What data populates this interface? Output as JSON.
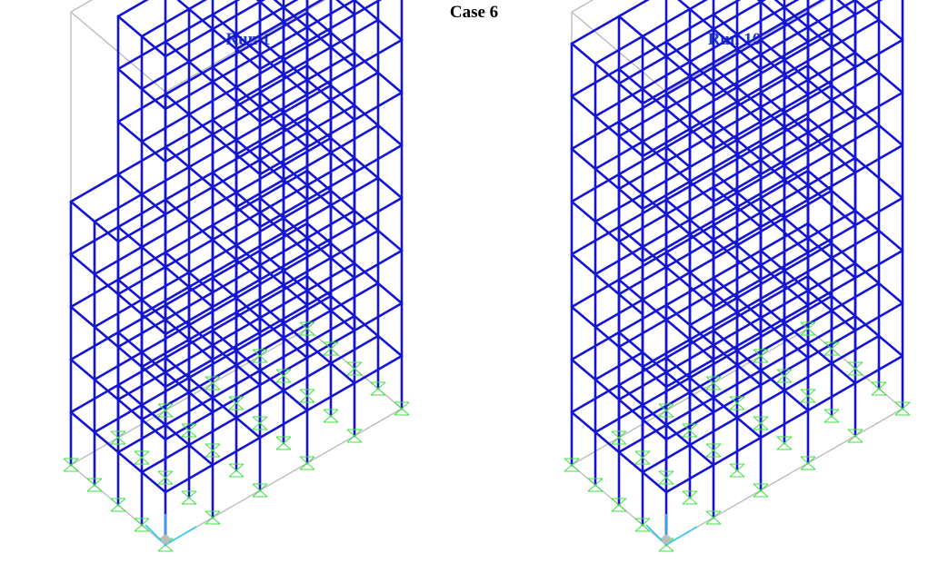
{
  "figure": {
    "title": "Case 6",
    "colors": {
      "frame": "#1414d2",
      "bounding_box": "#b9b9b9",
      "support": "#3fe03f",
      "axis": "#35c8ef",
      "title_blue": "#1f3fbf"
    },
    "panels": [
      {
        "id": "run1",
        "label": "Run 1"
      },
      {
        "id": "run10",
        "label": "Run 10"
      }
    ]
  }
}
